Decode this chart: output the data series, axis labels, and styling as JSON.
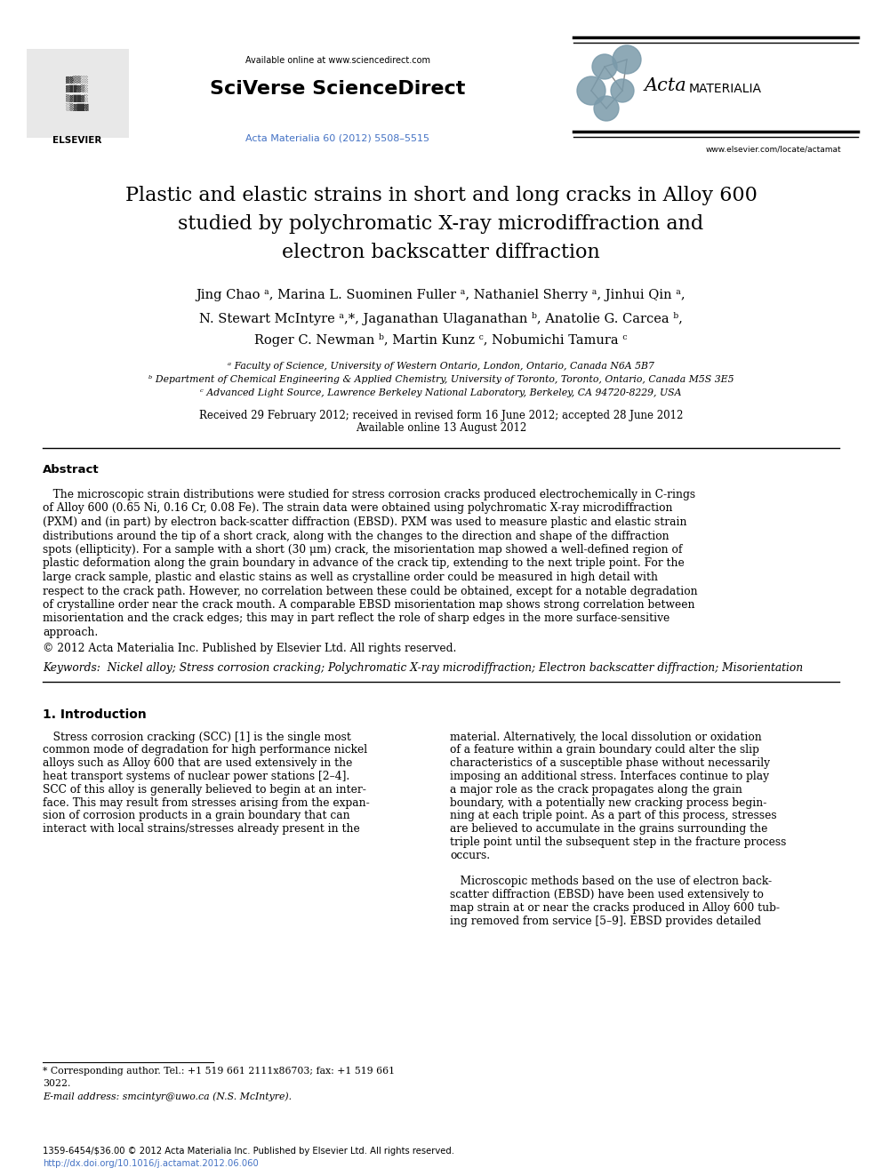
{
  "bg_color": "#ffffff",
  "page_width": 9.92,
  "page_height": 13.23,
  "available_online": "Available online at www.sciencedirect.com",
  "sciverse": "SciVerse ScienceDirect",
  "journal_ref": "Acta Materialia 60 (2012) 5508–5515",
  "journal_ref_color": "#4472c4",
  "elsevier_url": "www.elsevier.com/locate/actamat",
  "title_line1": "Plastic and elastic strains in short and long cracks in Alloy 600",
  "title_line2": "studied by polychromatic X-ray microdiffraction and",
  "title_line3": "electron backscatter diffraction",
  "authors_line1": "Jing Chao ᵃ, Marina L. Suominen Fuller ᵃ, Nathaniel Sherry ᵃ, Jinhui Qin ᵃ,",
  "authors_line2": "N. Stewart McIntyre ᵃ,*, Jaganathan Ulaganathan ᵇ, Anatolie G. Carcea ᵇ,",
  "authors_line3": "Roger C. Newman ᵇ, Martin Kunz ᶜ, Nobumichi Tamura ᶜ",
  "affil_a": "ᵃ Faculty of Science, University of Western Ontario, London, Ontario, Canada N6A 5B7",
  "affil_b": "ᵇ Department of Chemical Engineering & Applied Chemistry, University of Toronto, Toronto, Ontario, Canada M5S 3E5",
  "affil_c": "ᶜ Advanced Light Source, Lawrence Berkeley National Laboratory, Berkeley, CA 94720-8229, USA",
  "received": "Received 29 February 2012; received in revised form 16 June 2012; accepted 28 June 2012",
  "available": "Available online 13 August 2012",
  "abstract_title": "Abstract",
  "abstract_para": "   The microscopic strain distributions were studied for stress corrosion cracks produced electrochemically in C-rings of Alloy 600 (0.65 Ni, 0.16 Cr, 0.08 Fe). The strain data were obtained using polychromatic X-ray microdiffraction (PXM) and (in part) by electron back-scatter diffraction (EBSD). PXM was used to measure plastic and elastic strain distributions around the tip of a short crack, along with the changes to the direction and shape of the diffraction spots (ellipticity). For a sample with a short (30 μm) crack, the misorientation map showed a well-defined region of plastic deformation along the grain boundary in advance of the crack tip, extending to the next triple point. For the large crack sample, plastic and elastic stains as well as crystalline order could be measured in high detail with respect to the crack path. However, no correlation between these could be obtained, except for a notable degradation of crystalline order near the crack mouth. A comparable EBSD misorientation map shows strong correlation between misorientation and the crack edges; this may in part reflect the role of sharp edges in the more surface-sensitive approach.",
  "copyright": "© 2012 Acta Materialia Inc. Published by Elsevier Ltd. All rights reserved.",
  "keywords": "Keywords:  Nickel alloy; Stress corrosion cracking; Polychromatic X-ray microdiffraction; Electron backscatter diffraction; Misorientation",
  "section1_title": "1. Introduction",
  "intro_left_lines": [
    "   Stress corrosion cracking (SCC) [1] is the single most",
    "common mode of degradation for high performance nickel",
    "alloys such as Alloy 600 that are used extensively in the",
    "heat transport systems of nuclear power stations [2–4].",
    "SCC of this alloy is generally believed to begin at an inter-",
    "face. This may result from stresses arising from the expan-",
    "sion of corrosion products in a grain boundary that can",
    "interact with local strains/stresses already present in the"
  ],
  "intro_right_lines": [
    "material. Alternatively, the local dissolution or oxidation",
    "of a feature within a grain boundary could alter the slip",
    "characteristics of a susceptible phase without necessarily",
    "imposing an additional stress. Interfaces continue to play",
    "a major role as the crack propagates along the grain",
    "boundary, with a potentially new cracking process begin-",
    "ning at each triple point. As a part of this process, stresses",
    "are believed to accumulate in the grains surrounding the",
    "triple point until the subsequent step in the fracture process",
    "occurs."
  ],
  "intro_right2_lines": [
    "   Microscopic methods based on the use of electron back-",
    "scatter diffraction (EBSD) have been used extensively to",
    "map strain at or near the cracks produced in Alloy 600 tub-",
    "ing removed from service [5–9]. EBSD provides detailed"
  ],
  "footnote_line1": "* Corresponding author. Tel.: +1 519 661 2111x86703; fax: +1 519 661",
  "footnote_line2": "3022.",
  "footnote_email": "E-mail address: smcintyr@uwo.ca (N.S. McIntyre).",
  "bottom_line1": "1359-6454/$36.00 © 2012 Acta Materialia Inc. Published by Elsevier Ltd. All rights reserved.",
  "bottom_line2": "http://dx.doi.org/10.1016/j.actamat.2012.06.060",
  "bottom_line2_color": "#4472c4"
}
